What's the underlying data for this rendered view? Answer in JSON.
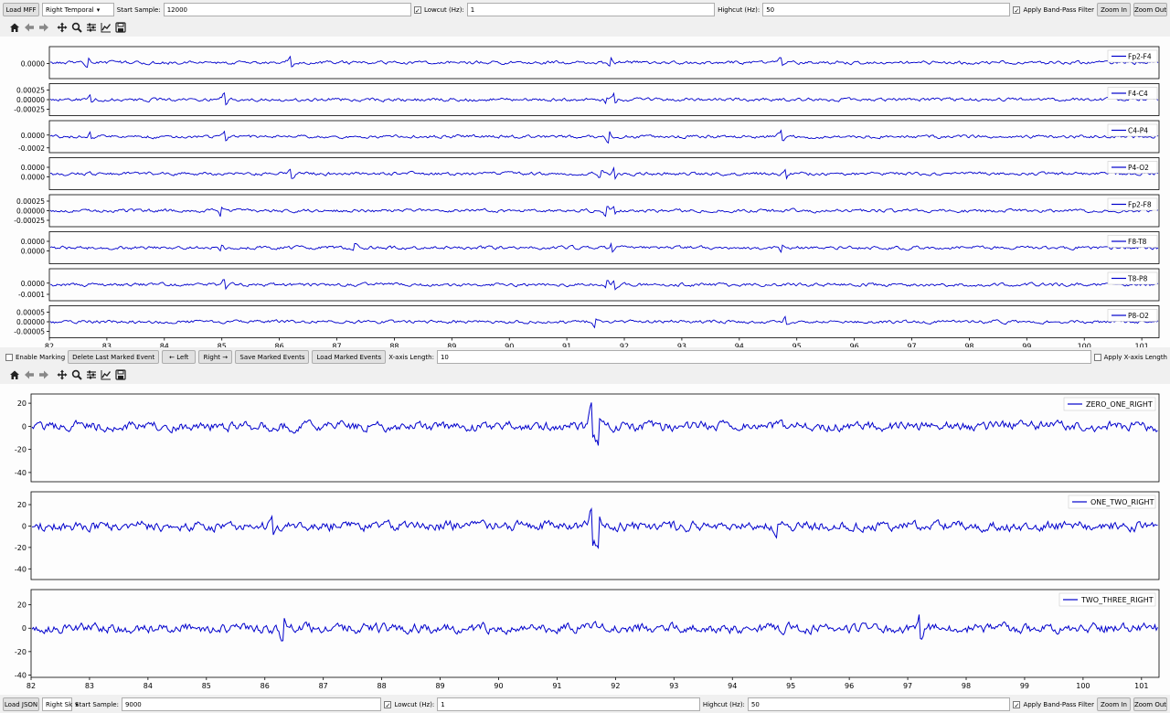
{
  "top_bar": {
    "load_label": "Load MFF",
    "montage_value": "Right Temporal",
    "start_sample_label": "Start Sample:",
    "start_sample_value": "12000",
    "lowcut_label": "Lowcut (Hz):",
    "lowcut_value": "1",
    "highcut_label": "Highcut (Hz):",
    "highcut_value": "50",
    "bandpass_label": "Apply Band-Pass Filter",
    "bandpass_checked": true,
    "lowcut_checked": true,
    "zoom_in": "Zoom In",
    "zoom_out": "Zoom Out"
  },
  "toolbar_icons": [
    "home-icon",
    "back-icon",
    "forward-icon",
    "pan-icon",
    "zoom-icon",
    "configure-icon",
    "edit-axis-icon",
    "save-icon"
  ],
  "middle_bar": {
    "enable_marking": "Enable Marking",
    "delete_last": "Delete Last Marked Event",
    "left": "← Left",
    "right": "Right →",
    "save_events": "Save Marked Events",
    "load_events": "Load Marked Events",
    "xaxis_label": "X-axis Length:",
    "xaxis_value": "10",
    "apply_xaxis": "Apply X-axis Length"
  },
  "bottom_bar": {
    "load_label": "Load JSON",
    "montage_value": "Right Sk",
    "start_sample_label": "Start Sample:",
    "start_sample_value": "9000",
    "lowcut_label": "Lowcut (Hz):",
    "lowcut_value": "1",
    "highcut_label": "Highcut (Hz):",
    "highcut_value": "50",
    "bandpass_label": "Apply Band-Pass Filter",
    "zoom_in": "Zoom In",
    "zoom_out": "Zoom Out"
  },
  "chart_data": [
    {
      "type": "line",
      "panel": "eeg",
      "x_range": [
        82,
        101.3
      ],
      "x_ticks": [
        "82",
        "83",
        "84",
        "85",
        "86",
        "87",
        "88",
        "89",
        "90",
        "91",
        "92",
        "93",
        "94",
        "95",
        "96",
        "97",
        "98",
        "99",
        "100",
        "101"
      ],
      "grid": false,
      "legend_position": "right",
      "line_color": "#0000cc",
      "series": [
        {
          "name": "Fp2-F4",
          "yticks": [
            "0.0000"
          ],
          "tick_fracs": [
            0.53
          ]
        },
        {
          "name": "F4-C4",
          "yticks": [
            "0.00025",
            "0.00000",
            "-0.00025"
          ],
          "tick_fracs": [
            0.2,
            0.5,
            0.8
          ]
        },
        {
          "name": "C4-P4",
          "yticks": [
            "0.0000",
            "-0.0002"
          ],
          "tick_fracs": [
            0.45,
            0.85
          ]
        },
        {
          "name": "P4-O2",
          "yticks": [
            "0.0000",
            "0.0000"
          ],
          "tick_fracs": [
            0.3,
            0.6
          ]
        },
        {
          "name": "Fp2-F8",
          "yticks": [
            "0.00025",
            "0.00000",
            "-0.00025"
          ],
          "tick_fracs": [
            0.2,
            0.5,
            0.8
          ]
        },
        {
          "name": "F8-T8",
          "yticks": [
            "0.0000",
            "0.0000"
          ],
          "tick_fracs": [
            0.3,
            0.6
          ]
        },
        {
          "name": "T8-P8",
          "yticks": [
            "0.0000",
            "-0.0001"
          ],
          "tick_fracs": [
            0.45,
            0.8
          ]
        },
        {
          "name": "P8-O2",
          "yticks": [
            "0.00005",
            "0.00000",
            "-0.00005"
          ],
          "tick_fracs": [
            0.2,
            0.5,
            0.8
          ]
        }
      ]
    },
    {
      "type": "line",
      "panel": "bipolar",
      "x_range": [
        82,
        101.3
      ],
      "x_ticks": [
        "82",
        "83",
        "84",
        "85",
        "86",
        "87",
        "88",
        "89",
        "90",
        "91",
        "92",
        "93",
        "94",
        "95",
        "96",
        "97",
        "98",
        "99",
        "100",
        "101"
      ],
      "grid": false,
      "legend_position": "top-right",
      "line_color": "#0000cc",
      "series": [
        {
          "name": "ZERO_ONE_RIGHT",
          "ylim": [
            -48,
            28
          ],
          "yticks": [
            20,
            0,
            -20,
            -40
          ]
        },
        {
          "name": "ONE_TWO_RIGHT",
          "ylim": [
            -50,
            32
          ],
          "yticks": [
            20,
            0,
            -20,
            -40
          ]
        },
        {
          "name": "TWO_THREE_RIGHT",
          "ylim": [
            -42,
            33
          ],
          "yticks": [
            20,
            0,
            -20,
            -40
          ]
        }
      ]
    }
  ]
}
